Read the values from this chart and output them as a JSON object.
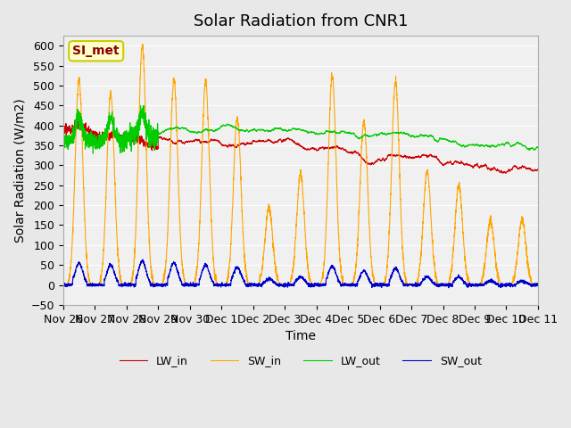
{
  "title": "Solar Radiation from CNR1",
  "xlabel": "Time",
  "ylabel": "Solar Radiation (W/m2)",
  "ylim": [
    -50,
    625
  ],
  "background_color": "#e8e8e8",
  "plot_bg_color": "#f0f0f0",
  "annotation_text": "SI_met",
  "annotation_color": "#8b0000",
  "annotation_bg": "#ffffcc",
  "annotation_border": "#cccc00",
  "lw_in_color": "#cc0000",
  "sw_in_color": "#ffa500",
  "lw_out_color": "#00cc00",
  "sw_out_color": "#0000cc",
  "legend_labels": [
    "LW_in",
    "SW_in",
    "LW_out",
    "SW_out"
  ],
  "grid_color": "#ffffff",
  "title_fontsize": 13,
  "axis_label_fontsize": 10,
  "tick_label_fontsize": 9,
  "num_days": 15,
  "xtick_labels": [
    "Nov 26",
    "Nov 27",
    "Nov 28",
    "Nov 29",
    "Nov 30",
    "Dec 1",
    "Dec 2",
    "Dec 3",
    "Dec 4",
    "Dec 5",
    "Dec 6",
    "Dec 7",
    "Dec 8",
    "Dec 9",
    "Dec 10",
    "Dec 11"
  ],
  "sw_in_peaks": [
    515,
    480,
    600,
    515,
    510,
    420,
    195,
    280,
    525,
    410,
    510,
    285,
    250,
    160,
    165
  ],
  "sw_out_peaks": [
    55,
    50,
    60,
    55,
    50,
    45,
    15,
    20,
    47,
    35,
    42,
    20,
    20,
    10,
    10
  ],
  "line_width": 0.8
}
